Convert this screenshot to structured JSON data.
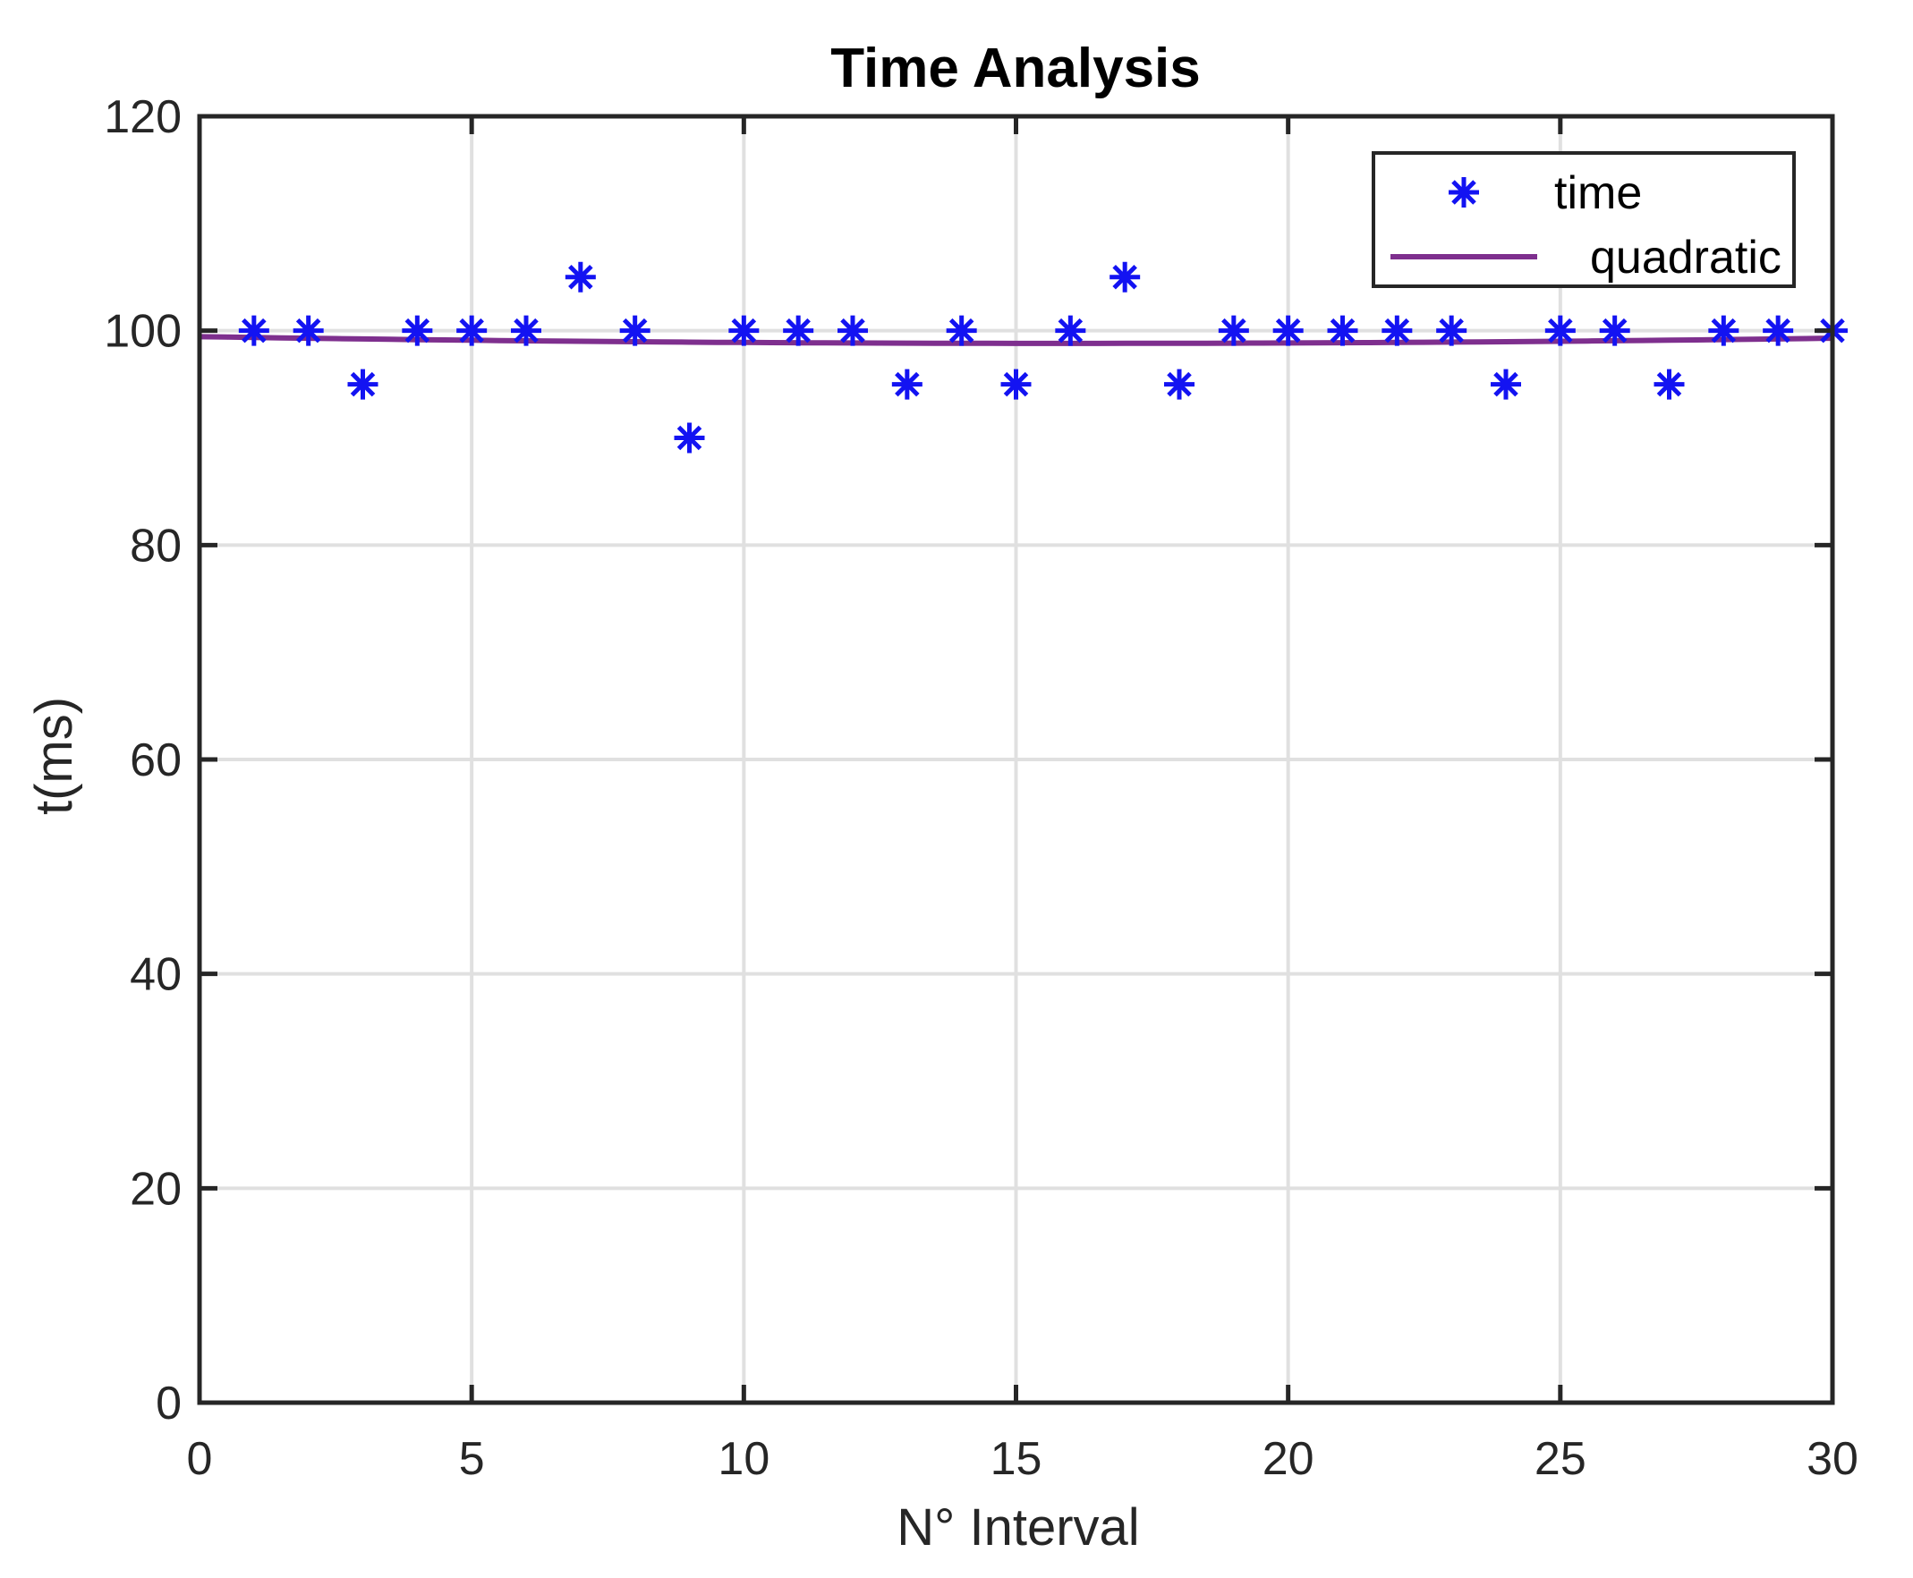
{
  "figure": {
    "title": "Time Analysis"
  },
  "axes": {
    "xlabel": "N° Interval",
    "ylabel": "t(ms)",
    "x_ticks": [
      0,
      5,
      10,
      15,
      20,
      25,
      30
    ],
    "y_ticks": [
      0,
      20,
      40,
      60,
      80,
      100,
      120
    ]
  },
  "legend": {
    "items": [
      {
        "label": "time",
        "symbol": "asterisk-marker",
        "color": "#1313F2"
      },
      {
        "label": "quadratic",
        "symbol": "line",
        "color": "#7E2F8E"
      }
    ]
  },
  "colors": {
    "marker_blue": "#1313F2",
    "fit_purple": "#7E2F8E",
    "grid": "#E0E0E0",
    "axis": "#262626",
    "background": "#FFFFFF"
  },
  "chart_data": {
    "type": "scatter",
    "title": "Time Analysis",
    "xlabel": "N° Interval",
    "ylabel": "t(ms)",
    "xlim": [
      0,
      30
    ],
    "ylim": [
      0,
      120
    ],
    "x_ticks": [
      0,
      5,
      10,
      15,
      20,
      25,
      30
    ],
    "y_ticks": [
      0,
      20,
      40,
      60,
      80,
      100,
      120
    ],
    "grid": true,
    "legend_position": "top-right",
    "series": [
      {
        "name": "time",
        "type": "scatter",
        "marker": "asterisk",
        "color": "#1313F2",
        "x": [
          1,
          2,
          3,
          4,
          5,
          6,
          7,
          8,
          9,
          10,
          11,
          12,
          13,
          14,
          15,
          16,
          17,
          18,
          19,
          20,
          21,
          22,
          23,
          24,
          25,
          26,
          27,
          28,
          29,
          30
        ],
        "y": [
          100,
          100,
          95,
          100,
          100,
          100,
          105,
          100,
          90,
          100,
          100,
          100,
          95,
          100,
          95,
          100,
          105,
          95,
          100,
          100,
          100,
          100,
          100,
          95,
          100,
          100,
          95,
          100,
          100,
          100
        ]
      },
      {
        "name": "quadratic",
        "type": "line",
        "color": "#7E2F8E",
        "coefficients": {
          "a": 0.00246,
          "b": -0.0785,
          "c": 99.44
        },
        "x_range": [
          0,
          30
        ]
      }
    ]
  }
}
